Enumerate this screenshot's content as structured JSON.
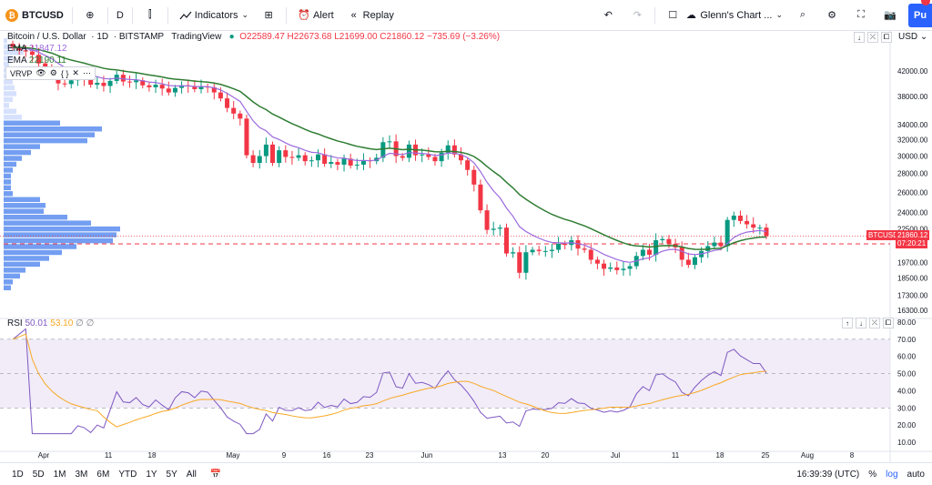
{
  "toolbar": {
    "symbol": "BTCUSD",
    "symbol_icon": "bitcoin-icon",
    "interval": "D",
    "indicators_label": "Indicators",
    "alert_label": "Alert",
    "replay_label": "Replay",
    "layout_name": "Glenn's Chart ...",
    "publish_label": "Pu"
  },
  "legend": {
    "symbol_name": "Bitcoin / U.S. Dollar",
    "interval": "1D",
    "exchange": "BITSTAMP",
    "source": "TradingView",
    "ohlc": "O22589.47 H22673.68 L21699.00 C21860.12 −735.69 (−3.26%)",
    "ema1_label": "EMA",
    "ema1_value": "21847.12",
    "ema2_label": "EMA",
    "ema2_value": "22190.11",
    "vrvp_label": "VRVP"
  },
  "price_axis": {
    "currency": "USD",
    "ticks": [
      "42000.00",
      "38000.00",
      "34000.00",
      "32000.00",
      "30000.00",
      "28000.00",
      "26000.00",
      "24000.00",
      "22500.00",
      "19700.00",
      "18500.00",
      "17300.00",
      "16300.00"
    ],
    "last_price": "21860.12",
    "countdown": "07:20:21"
  },
  "rsi": {
    "label": "RSI",
    "value1": "50.01",
    "value2": "53.10",
    "ticks": [
      "80.00",
      "70.00",
      "60.00",
      "50.00",
      "40.00",
      "30.00",
      "20.00",
      "10.00"
    ]
  },
  "time_axis": {
    "labels": [
      "Apr",
      "11",
      "18",
      "May",
      "9",
      "16",
      "23",
      "Jun",
      "13",
      "20",
      "Jul",
      "11",
      "18",
      "25",
      "Aug",
      "8"
    ]
  },
  "bottom_bar": {
    "ranges": [
      "1D",
      "5D",
      "1M",
      "3M",
      "6M",
      "YTD",
      "1Y",
      "5Y",
      "All"
    ],
    "time": "16:39:39 (UTC)",
    "percent": "%",
    "log": "log",
    "auto": "auto"
  },
  "colors": {
    "up": "#089981",
    "down": "#f23645",
    "ema_fast": "#9c6ade",
    "ema_slow": "#2e7d32",
    "volume_profile": "#2962ff",
    "rsi_line": "#7e57c2",
    "rsi_ma": "#f9a825",
    "rsi_band": "#ede7f6"
  },
  "chart_data": {
    "type": "candlestick",
    "symbol": "BTCUSD",
    "candles_close": [
      46200,
      45600,
      45400,
      44800,
      43300,
      42500,
      41900,
      40000,
      39900,
      40500,
      41000,
      40700,
      39800,
      40100,
      39600,
      40400,
      41400,
      40300,
      40200,
      40500,
      39700,
      39400,
      39800,
      39200,
      38600,
      39300,
      39700,
      39600,
      39100,
      39500,
      39400,
      38600,
      37700,
      36300,
      35500,
      34800,
      30100,
      29200,
      30000,
      31400,
      29200,
      30700,
      29900,
      29800,
      30100,
      29400,
      29500,
      30200,
      29100,
      29300,
      29000,
      29700,
      28900,
      29000,
      29500,
      29400,
      29800,
      31700,
      31800,
      30000,
      29800,
      31400,
      30100,
      30200,
      29900,
      29400,
      30400,
      31300,
      30200,
      29500,
      28400,
      26800,
      24200,
      22400,
      22500,
      22600,
      20400,
      20500,
      18900,
      20500,
      20700,
      20600,
      20600,
      20700,
      21200,
      21100,
      21500,
      20800,
      20700,
      19900,
      19600,
      19200,
      19300,
      19100,
      19200,
      19400,
      20200,
      20700,
      20300,
      21500,
      21600,
      21200,
      20900,
      19900,
      19500,
      20100,
      20600,
      21000,
      21300,
      21000,
      23300,
      23700,
      23200,
      22900,
      22600,
      22600,
      21860
    ],
    "rsi_range": [
      10,
      80
    ],
    "x_labels": [
      "Apr",
      "11",
      "18",
      "May",
      "9",
      "16",
      "23",
      "Jun",
      "13",
      "20",
      "Jul",
      "11",
      "18",
      "25",
      "Aug",
      "8"
    ]
  }
}
